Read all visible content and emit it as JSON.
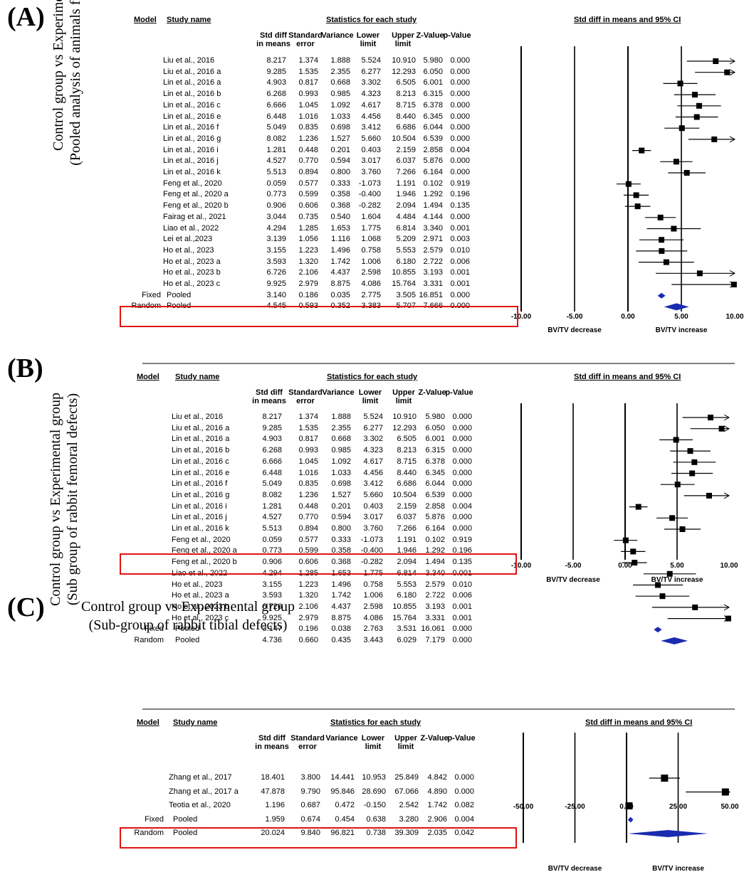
{
  "colors": {
    "marker": "#000000",
    "pooled_diamond": "#1a2bb0",
    "highlight": "#e11111"
  },
  "headers": {
    "model": "Model",
    "study_name": "Study name",
    "stats_group": "Statistics for each study",
    "forest_title": "Std diff in means and 95% CI",
    "columns": [
      "Std diff in means",
      "Standard error",
      "Variance",
      "Lower limit",
      "Upper limit",
      "Z-Value",
      "p-Value"
    ]
  },
  "chart_data": [
    {
      "type": "forest",
      "panel_label": "(A)",
      "ylabel": [
        "Control group vs Experimental group",
        "(Pooled analysis of animals femur defects)"
      ],
      "xlim": [
        -10,
        10
      ],
      "xticks": [
        "-10.00",
        "-5.00",
        "0.00",
        "5.00",
        "10.00"
      ],
      "xlabel_left": "BV/TV decrease",
      "xlabel_right": "BV/TV increase",
      "studies": [
        {
          "name": "Liu et al., 2016",
          "values": [
            "8.217",
            "1.374",
            "1.888",
            "5.524",
            "10.910",
            "5.980",
            "0.000"
          ],
          "est": 8.217,
          "lo": 5.524,
          "hi": 10.91
        },
        {
          "name": "Liu et al., 2016 a",
          "values": [
            "9.285",
            "1.535",
            "2.355",
            "6.277",
            "12.293",
            "6.050",
            "0.000"
          ],
          "est": 9.285,
          "lo": 6.277,
          "hi": 12.293
        },
        {
          "name": "Lin et al., 2016 a",
          "values": [
            "4.903",
            "0.817",
            "0.668",
            "3.302",
            "6.505",
            "6.001",
            "0.000"
          ],
          "est": 4.903,
          "lo": 3.302,
          "hi": 6.505
        },
        {
          "name": "Lin et al., 2016 b",
          "values": [
            "6.268",
            "0.993",
            "0.985",
            "4.323",
            "8.213",
            "6.315",
            "0.000"
          ],
          "est": 6.268,
          "lo": 4.323,
          "hi": 8.213
        },
        {
          "name": "Lin et al., 2016 c",
          "values": [
            "6.666",
            "1.045",
            "1.092",
            "4.617",
            "8.715",
            "6.378",
            "0.000"
          ],
          "est": 6.666,
          "lo": 4.617,
          "hi": 8.715
        },
        {
          "name": "Lin et al., 2016 e",
          "values": [
            "6.448",
            "1.016",
            "1.033",
            "4.456",
            "8.440",
            "6.345",
            "0.000"
          ],
          "est": 6.448,
          "lo": 4.456,
          "hi": 8.44
        },
        {
          "name": "Lin et al., 2016 f",
          "values": [
            "5.049",
            "0.835",
            "0.698",
            "3.412",
            "6.686",
            "6.044",
            "0.000"
          ],
          "est": 5.049,
          "lo": 3.412,
          "hi": 6.686
        },
        {
          "name": "Lin et al., 2016 g",
          "values": [
            "8.082",
            "1.236",
            "1.527",
            "5.660",
            "10.504",
            "6.539",
            "0.000"
          ],
          "est": 8.082,
          "lo": 5.66,
          "hi": 10.504
        },
        {
          "name": "Lin et al., 2016 i",
          "values": [
            "1.281",
            "0.448",
            "0.201",
            "0.403",
            "2.159",
            "2.858",
            "0.004"
          ],
          "est": 1.281,
          "lo": 0.403,
          "hi": 2.159
        },
        {
          "name": "Lin et al., 2016 j",
          "values": [
            "4.527",
            "0.770",
            "0.594",
            "3.017",
            "6.037",
            "5.876",
            "0.000"
          ],
          "est": 4.527,
          "lo": 3.017,
          "hi": 6.037
        },
        {
          "name": "Lin et al., 2016 k",
          "values": [
            "5.513",
            "0.894",
            "0.800",
            "3.760",
            "7.266",
            "6.164",
            "0.000"
          ],
          "est": 5.513,
          "lo": 3.76,
          "hi": 7.266
        },
        {
          "name": "Feng et al., 2020",
          "values": [
            "0.059",
            "0.577",
            "0.333",
            "-1.073",
            "1.191",
            "0.102",
            "0.919"
          ],
          "est": 0.059,
          "lo": -1.073,
          "hi": 1.191
        },
        {
          "name": "Feng et al., 2020 a",
          "values": [
            "0.773",
            "0.599",
            "0.358",
            "-0.400",
            "1.946",
            "1.292",
            "0.196"
          ],
          "est": 0.773,
          "lo": -0.4,
          "hi": 1.946
        },
        {
          "name": "Feng et al., 2020 b",
          "values": [
            "0.906",
            "0.606",
            "0.368",
            "-0.282",
            "2.094",
            "1.494",
            "0.135"
          ],
          "est": 0.906,
          "lo": -0.282,
          "hi": 2.094
        },
        {
          "name": "Fairag et al., 2021",
          "values": [
            "3.044",
            "0.735",
            "0.540",
            "1.604",
            "4.484",
            "4.144",
            "0.000"
          ],
          "est": 3.044,
          "lo": 1.604,
          "hi": 4.484
        },
        {
          "name": "Liao et al., 2022",
          "values": [
            "4.294",
            "1.285",
            "1.653",
            "1.775",
            "6.814",
            "3.340",
            "0.001"
          ],
          "est": 4.294,
          "lo": 1.775,
          "hi": 6.814
        },
        {
          "name": "Lei et al.,2023",
          "values": [
            "3.139",
            "1.056",
            "1.116",
            "1.068",
            "5.209",
            "2.971",
            "0.003"
          ],
          "est": 3.139,
          "lo": 1.068,
          "hi": 5.209
        },
        {
          "name": "Ho et al., 2023",
          "values": [
            "3.155",
            "1.223",
            "1.496",
            "0.758",
            "5.553",
            "2.579",
            "0.010"
          ],
          "est": 3.155,
          "lo": 0.758,
          "hi": 5.553
        },
        {
          "name": "Ho et al., 2023 a",
          "values": [
            "3.593",
            "1.320",
            "1.742",
            "1.006",
            "6.180",
            "2.722",
            "0.006"
          ],
          "est": 3.593,
          "lo": 1.006,
          "hi": 6.18
        },
        {
          "name": "Ho et al., 2023 b",
          "values": [
            "6.726",
            "2.106",
            "4.437",
            "2.598",
            "10.855",
            "3.193",
            "0.001"
          ],
          "est": 6.726,
          "lo": 2.598,
          "hi": 10.855
        },
        {
          "name": "Ho et al., 2023 c",
          "values": [
            "9.925",
            "2.979",
            "8.875",
            "4.086",
            "15.764",
            "3.331",
            "0.001"
          ],
          "est": 9.925,
          "lo": 4.086,
          "hi": 15.764
        }
      ],
      "pooled": [
        {
          "model": "Fixed",
          "name": "Pooled",
          "values": [
            "3.140",
            "0.186",
            "0.035",
            "2.775",
            "3.505",
            "16.851",
            "0.000"
          ],
          "est": 3.14,
          "lo": 2.775,
          "hi": 3.505
        },
        {
          "model": "Random",
          "name": "Pooled",
          "values": [
            "4.545",
            "0.593",
            "0.352",
            "3.383",
            "5.707",
            "7.666",
            "0.000"
          ],
          "est": 4.545,
          "lo": 3.383,
          "hi": 5.707
        }
      ]
    },
    {
      "type": "forest",
      "panel_label": "(B)",
      "ylabel": [
        "Control group vs Experimental group",
        "(Sub group of rabbit femoral defects)"
      ],
      "xlim": [
        -10,
        10
      ],
      "xticks": [
        "-10.00",
        "-5.00",
        "0.00",
        "5.00",
        "10.00"
      ],
      "xlabel_left": "BV/TV decrease",
      "xlabel_right": "BV/TV increase",
      "studies": [
        {
          "name": "Liu et al., 2016",
          "values": [
            "8.217",
            "1.374",
            "1.888",
            "5.524",
            "10.910",
            "5.980",
            "0.000"
          ],
          "est": 8.217,
          "lo": 5.524,
          "hi": 10.91
        },
        {
          "name": "Liu et al., 2016 a",
          "values": [
            "9.285",
            "1.535",
            "2.355",
            "6.277",
            "12.293",
            "6.050",
            "0.000"
          ],
          "est": 9.285,
          "lo": 6.277,
          "hi": 12.293
        },
        {
          "name": "Lin et al., 2016 a",
          "values": [
            "4.903",
            "0.817",
            "0.668",
            "3.302",
            "6.505",
            "6.001",
            "0.000"
          ],
          "est": 4.903,
          "lo": 3.302,
          "hi": 6.505
        },
        {
          "name": "Lin et al., 2016 b",
          "values": [
            "6.268",
            "0.993",
            "0.985",
            "4.323",
            "8.213",
            "6.315",
            "0.000"
          ],
          "est": 6.268,
          "lo": 4.323,
          "hi": 8.213
        },
        {
          "name": "Lin et al., 2016 c",
          "values": [
            "6.666",
            "1.045",
            "1.092",
            "4.617",
            "8.715",
            "6.378",
            "0.000"
          ],
          "est": 6.666,
          "lo": 4.617,
          "hi": 8.715
        },
        {
          "name": "Lin et al., 2016 e",
          "values": [
            "6.448",
            "1.016",
            "1.033",
            "4.456",
            "8.440",
            "6.345",
            "0.000"
          ],
          "est": 6.448,
          "lo": 4.456,
          "hi": 8.44
        },
        {
          "name": "Lin et al., 2016 f",
          "values": [
            "5.049",
            "0.835",
            "0.698",
            "3.412",
            "6.686",
            "6.044",
            "0.000"
          ],
          "est": 5.049,
          "lo": 3.412,
          "hi": 6.686
        },
        {
          "name": "Lin et al., 2016 g",
          "values": [
            "8.082",
            "1.236",
            "1.527",
            "5.660",
            "10.504",
            "6.539",
            "0.000"
          ],
          "est": 8.082,
          "lo": 5.66,
          "hi": 10.504
        },
        {
          "name": "Lin et al., 2016 i",
          "values": [
            "1.281",
            "0.448",
            "0.201",
            "0.403",
            "2.159",
            "2.858",
            "0.004"
          ],
          "est": 1.281,
          "lo": 0.403,
          "hi": 2.159
        },
        {
          "name": "Lin et al., 2016 j",
          "values": [
            "4.527",
            "0.770",
            "0.594",
            "3.017",
            "6.037",
            "5.876",
            "0.000"
          ],
          "est": 4.527,
          "lo": 3.017,
          "hi": 6.037
        },
        {
          "name": "Lin et al., 2016 k",
          "values": [
            "5.513",
            "0.894",
            "0.800",
            "3.760",
            "7.266",
            "6.164",
            "0.000"
          ],
          "est": 5.513,
          "lo": 3.76,
          "hi": 7.266
        },
        {
          "name": "Feng et al., 2020",
          "values": [
            "0.059",
            "0.577",
            "0.333",
            "-1.073",
            "1.191",
            "0.102",
            "0.919"
          ],
          "est": 0.059,
          "lo": -1.073,
          "hi": 1.191
        },
        {
          "name": "Feng et al., 2020 a",
          "values": [
            "0.773",
            "0.599",
            "0.358",
            "-0.400",
            "1.946",
            "1.292",
            "0.196"
          ],
          "est": 0.773,
          "lo": -0.4,
          "hi": 1.946
        },
        {
          "name": "Feng et al., 2020 b",
          "values": [
            "0.906",
            "0.606",
            "0.368",
            "-0.282",
            "2.094",
            "1.494",
            "0.135"
          ],
          "est": 0.906,
          "lo": -0.282,
          "hi": 2.094
        },
        {
          "name": "Liao et al., 2022",
          "values": [
            "4.294",
            "1.285",
            "1.653",
            "1.775",
            "6.814",
            "3.340",
            "0.001"
          ],
          "est": 4.294,
          "lo": 1.775,
          "hi": 6.814
        },
        {
          "name": "Ho et al., 2023",
          "values": [
            "3.155",
            "1.223",
            "1.496",
            "0.758",
            "5.553",
            "2.579",
            "0.010"
          ],
          "est": 3.155,
          "lo": 0.758,
          "hi": 5.553
        },
        {
          "name": "Ho et al., 2023 a",
          "values": [
            "3.593",
            "1.320",
            "1.742",
            "1.006",
            "6.180",
            "2.722",
            "0.006"
          ],
          "est": 3.593,
          "lo": 1.006,
          "hi": 6.18
        },
        {
          "name": "Ho et al., 2023 b",
          "values": [
            "6.726",
            "2.106",
            "4.437",
            "2.598",
            "10.855",
            "3.193",
            "0.001"
          ],
          "est": 6.726,
          "lo": 2.598,
          "hi": 10.855
        },
        {
          "name": "Ho et al., 2023 c",
          "values": [
            "9.925",
            "2.979",
            "8.875",
            "4.086",
            "15.764",
            "3.331",
            "0.001"
          ],
          "est": 9.925,
          "lo": 4.086,
          "hi": 15.764
        }
      ],
      "pooled": [
        {
          "model": "Fixed",
          "name": "Pooled",
          "values": [
            "3.147",
            "0.196",
            "0.038",
            "2.763",
            "3.531",
            "16.061",
            "0.000"
          ],
          "est": 3.147,
          "lo": 2.763,
          "hi": 3.531
        },
        {
          "model": "Random",
          "name": "Pooled",
          "values": [
            "4.736",
            "0.660",
            "0.435",
            "3.443",
            "6.029",
            "7.179",
            "0.000"
          ],
          "est": 4.736,
          "lo": 3.443,
          "hi": 6.029
        }
      ]
    },
    {
      "type": "forest",
      "panel_label": "(C)",
      "ylabel": [
        "Control group vs Experimental group",
        "(Sub-group of rabbit tibial defects)"
      ],
      "xlim": [
        -50,
        50
      ],
      "xticks": [
        "-50.00",
        "-25.00",
        "0.00",
        "25.00",
        "50.00"
      ],
      "xlabel_left": "BV/TV decrease",
      "xlabel_right": "BV/TV  increase",
      "studies": [
        {
          "name": "Zhang et al., 2017",
          "values": [
            "18.401",
            "3.800",
            "14.441",
            "10.953",
            "25.849",
            "4.842",
            "0.000"
          ],
          "est": 18.401,
          "lo": 10.953,
          "hi": 25.849
        },
        {
          "name": "Zhang et al., 2017 a",
          "values": [
            "47.878",
            "9.790",
            "95.846",
            "28.690",
            "67.066",
            "4.890",
            "0.000"
          ],
          "est": 47.878,
          "lo": 28.69,
          "hi": 67.066
        },
        {
          "name": "Teotia et al., 2020",
          "values": [
            "1.196",
            "0.687",
            "0.472",
            "-0.150",
            "2.542",
            "1.742",
            "0.082"
          ],
          "est": 1.196,
          "lo": -0.15,
          "hi": 2.542
        }
      ],
      "pooled": [
        {
          "model": "Fixed",
          "name": "Pooled",
          "values": [
            "1.959",
            "0.674",
            "0.454",
            "0.638",
            "3.280",
            "2.906",
            "0.004"
          ],
          "est": 1.959,
          "lo": 0.638,
          "hi": 3.28
        },
        {
          "model": "Random",
          "name": "Pooled",
          "values": [
            "20.024",
            "9.840",
            "96.821",
            "0.738",
            "39.309",
            "2.035",
            "0.042"
          ],
          "est": 20.024,
          "lo": 0.738,
          "hi": 39.309
        }
      ]
    }
  ]
}
